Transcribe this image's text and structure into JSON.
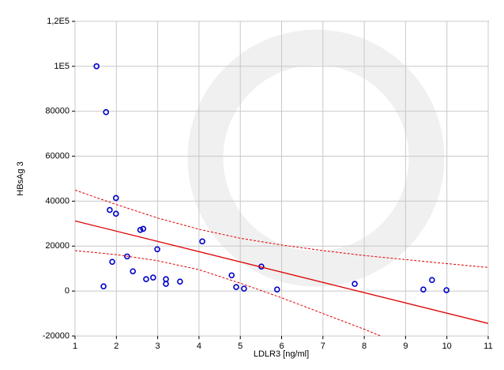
{
  "chart_data": {
    "type": "scatter",
    "x_label": "LDLR3 [ng/ml]",
    "y_label": "HBsAg 3",
    "xlim": [
      1,
      11
    ],
    "xticks": [
      1,
      2,
      3,
      4,
      5,
      6,
      7,
      8,
      9,
      10,
      11
    ],
    "ylim": [
      -20000,
      120000
    ],
    "yticks": [
      -20000,
      0,
      20000,
      40000,
      60000,
      80000,
      {
        "value": 100000,
        "label": "1E5"
      },
      {
        "value": 120000,
        "label": "1,2E5"
      }
    ],
    "grid": true,
    "series": [
      {
        "type": "scatter",
        "color": "#0000cc",
        "x": [
          1.52,
          1.75,
          1.99,
          1.84,
          1.99,
          2.58,
          2.65,
          1.9,
          2.26,
          1.69,
          2.4,
          2.99,
          2.72,
          2.89,
          3.2,
          3.2,
          3.54,
          4.08,
          4.79,
          4.9,
          5.09,
          5.51,
          5.89,
          7.77,
          9.43,
          9.64,
          9.99
        ],
        "values": [
          100000,
          79600,
          41400,
          36100,
          34400,
          27200,
          27700,
          13000,
          15400,
          2100,
          8800,
          18600,
          5300,
          6000,
          5300,
          3200,
          4200,
          22100,
          7000,
          1800,
          1100,
          10900,
          700,
          3200,
          700,
          4900,
          400
        ]
      },
      {
        "type": "line",
        "color": "#e00000",
        "dashed": false,
        "x": [
          1,
          11
        ],
        "values": [
          31200,
          -14400
        ]
      },
      {
        "type": "line",
        "color": "#e00000",
        "dashed": true,
        "x": [
          1,
          2,
          3,
          4,
          5,
          6,
          7,
          8,
          9,
          10,
          11
        ],
        "values": [
          44900,
          38500,
          32500,
          27500,
          23500,
          20500,
          18000,
          15800,
          14000,
          12200,
          10500
        ]
      },
      {
        "type": "line",
        "color": "#e00000",
        "dashed": true,
        "x": [
          1,
          2,
          3,
          4,
          5,
          6,
          7,
          8,
          8.4
        ],
        "values": [
          18000,
          16200,
          13500,
          9500,
          3500,
          -3000,
          -10000,
          -17000,
          -20000
        ]
      }
    ]
  }
}
